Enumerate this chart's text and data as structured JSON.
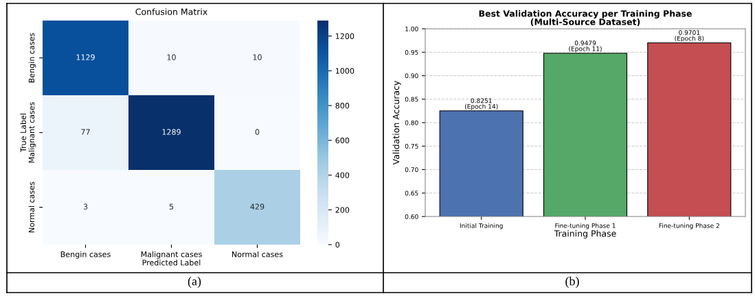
{
  "chart_data": [
    {
      "type": "heatmap",
      "title": "Confusion Matrix",
      "xlabel": "Predicted Label",
      "ylabel": "True Label",
      "categories": [
        "Bengin cases",
        "Malignant cases",
        "Normal cases"
      ],
      "y_categories": [
        "Bengin cases",
        "Malignant cases",
        "Normal cases"
      ],
      "cells": [
        [
          1129,
          10,
          10
        ],
        [
          77,
          1289,
          0
        ],
        [
          3,
          5,
          429
        ]
      ],
      "data_labels": true,
      "clim": [
        0,
        1289
      ],
      "cticks": [
        0,
        200,
        400,
        600,
        800,
        1000,
        1200
      ],
      "annotations": [
        "(a)"
      ]
    },
    {
      "type": "bar",
      "title": "Best Validation Accuracy per Training Phase\n(Multi-Source Dataset)",
      "xlabel": "Training Phase",
      "ylabel": "Validation Accuracy",
      "categories": [
        "Initial Training",
        "Fine-tuning Phase 1",
        "Fine-tuning Phase 2"
      ],
      "values": [
        0.8251,
        0.9479,
        0.9701
      ],
      "colors": [
        "#4c72b0",
        "#55a868",
        "#c44e52"
      ],
      "value_labels": [
        "0.8251\n(Epoch 14)",
        "0.9479\n(Epoch 11)",
        "0.9701\n(Epoch 8)"
      ],
      "ylim": [
        0.6,
        1.0
      ],
      "yticks": [
        {
          "value": 0.6,
          "label": "0.60"
        },
        {
          "value": 0.65,
          "label": "0.65"
        },
        {
          "value": 0.7,
          "label": "0.70"
        },
        {
          "value": 0.75,
          "label": "0.75"
        },
        {
          "value": 0.8,
          "label": "0.80"
        },
        {
          "value": 0.85,
          "label": "0.85"
        },
        {
          "value": 0.9,
          "label": "0.90"
        },
        {
          "value": 0.95,
          "label": "0.95"
        },
        {
          "value": 1.0,
          "label": "1.00"
        }
      ],
      "grid": "y",
      "line_style": "dashed",
      "annotations": [
        "(b)"
      ]
    }
  ]
}
